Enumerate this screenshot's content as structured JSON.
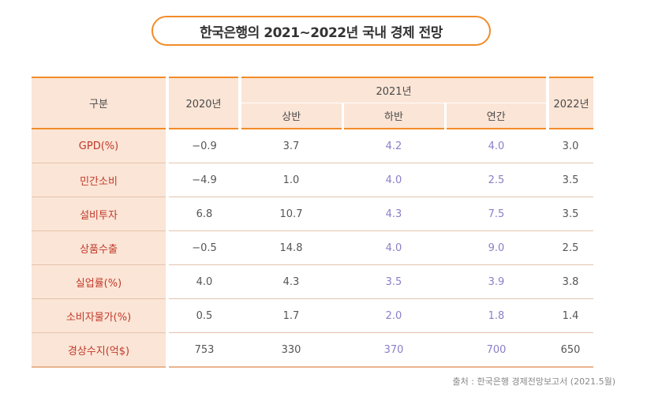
{
  "title": "한국은행의 2021~2022년 국내 경제 전망",
  "table": {
    "header_category": "구분",
    "header_2020": "2020년",
    "header_2021": "2021년",
    "header_2022": "2022년",
    "sub_headers": [
      "상반",
      "하반",
      "연간"
    ],
    "rows": [
      {
        "label": "GPD(%)",
        "y2020": "−0.9",
        "h1": "3.7",
        "h2": "4.2",
        "annual": "4.0",
        "y2022": "3.0"
      },
      {
        "label": "민간소비",
        "y2020": "−4.9",
        "h1": "1.0",
        "h2": "4.0",
        "annual": "2.5",
        "y2022": "3.5"
      },
      {
        "label": "설비투자",
        "y2020": "6.8",
        "h1": "10.7",
        "h2": "4.3",
        "annual": "7.5",
        "y2022": "3.5"
      },
      {
        "label": "상품수출",
        "y2020": "−0.5",
        "h1": "14.8",
        "h2": "4.0",
        "annual": "9.0",
        "y2022": "2.5"
      },
      {
        "label": "실업률(%)",
        "y2020": "4.0",
        "h1": "4.3",
        "h2": "3.5",
        "annual": "3.9",
        "y2022": "3.8"
      },
      {
        "label": "소비자물가(%)",
        "y2020": "0.5",
        "h1": "1.7",
        "h2": "2.0",
        "annual": "1.8",
        "y2022": "1.4"
      },
      {
        "label": "경상수지(억$)",
        "y2020": "753",
        "h1": "330",
        "h2": "370",
        "annual": "700",
        "y2022": "650"
      }
    ]
  },
  "source": "출처 : 한국은행 경제전망보고서 (2021.5월)",
  "colors": {
    "accent": "#f28c28",
    "header_bg": "#fbe5d6",
    "label_text": "#c0392b",
    "forecast_text": "#8a7fc8"
  }
}
